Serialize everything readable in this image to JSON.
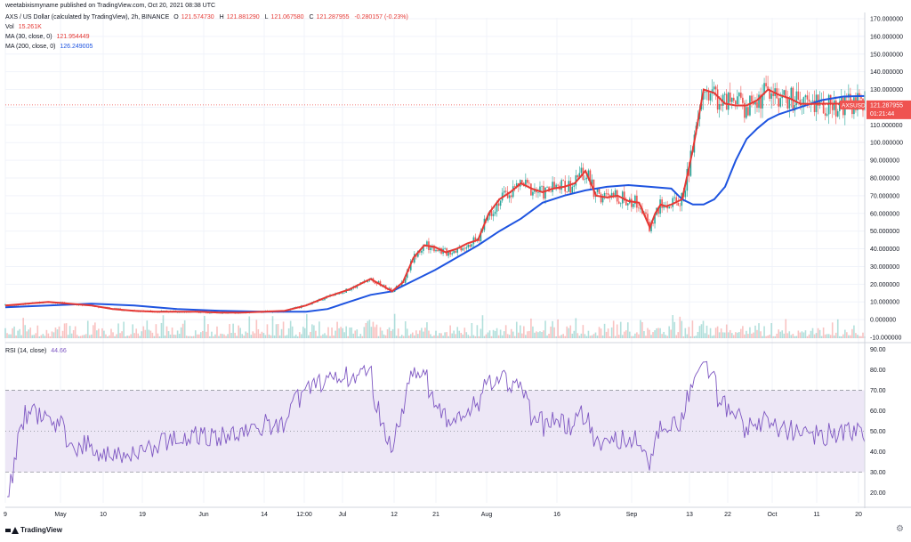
{
  "header": {
    "publisher_line": "weetabixismyname published on TradingView.com, Oct 20, 2021 08:38 UTC",
    "symbol": "AXS / US Dollar (calculated by TradingView), 2h, BINANCE",
    "o_label": "O",
    "o_value": "121.574730",
    "h_label": "H",
    "h_value": "121.881290",
    "l_label": "L",
    "l_value": "121.067580",
    "c_label": "C",
    "c_value": "121.287955",
    "change": "-0.280157 (-0.23%)",
    "vol_label": "Vol",
    "vol_value": "15.261K",
    "ma30_label": "MA (30, close, 0)",
    "ma30_value": "121.954449",
    "ma200_label": "MA (200, close, 0)",
    "ma200_value": "126.249005",
    "rsi_label": "RSI (14, close)",
    "rsi_value": "44.66"
  },
  "price_tag": {
    "symbol": "AXSUSD",
    "price": "121.287955",
    "countdown": "01:21:44"
  },
  "footer": {
    "brand": "TradingView"
  },
  "colors": {
    "up": "#26a69a",
    "down": "#ef5350",
    "ma30": "#e53935",
    "ma200": "#1e54e0",
    "rsi": "#7e57c2",
    "rsi_band": "#ede7f6"
  },
  "chart_data": [
    {
      "type": "line",
      "panel": "price",
      "y_ticks": [
        "170.000000",
        "160.000000",
        "150.000000",
        "140.000000",
        "130.000000",
        "120.000000",
        "110.000000",
        "100.000000",
        "90.000000",
        "80.000000",
        "70.000000",
        "60.000000",
        "50.000000",
        "40.000000",
        "30.000000",
        "20.000000",
        "10.000000",
        "0.000000",
        "-10.000000"
      ],
      "ylim": [
        -10,
        170
      ],
      "x_ticks": [
        "9",
        "May",
        "10",
        "19",
        "Jun",
        "14",
        "12:00",
        "Jul",
        "12",
        "21",
        "Aug",
        "16",
        "Sep",
        "13",
        "22",
        "Oct",
        "11",
        "20"
      ],
      "series": [
        {
          "name": "MA (30, close, 0)",
          "x": [
            0,
            4,
            8,
            12,
            16,
            20,
            24,
            28,
            32,
            36,
            40,
            44,
            48,
            52,
            56,
            60,
            64,
            68,
            72,
            74,
            76,
            78,
            80,
            82,
            84,
            86,
            88,
            90,
            92,
            94,
            96,
            98,
            100,
            102,
            104,
            106,
            108,
            110,
            112,
            114,
            116,
            118,
            120,
            121,
            122,
            123,
            124,
            126,
            128,
            130,
            132,
            134,
            136,
            138,
            140,
            142,
            144,
            146,
            148,
            150,
            152,
            154,
            156,
            158,
            160
          ],
          "values": [
            8,
            9,
            10,
            9,
            8,
            6,
            5,
            4.5,
            4.5,
            4.5,
            4,
            4,
            4.5,
            5,
            8,
            13,
            17,
            23,
            16,
            21,
            35,
            42,
            41,
            38,
            40,
            43,
            45,
            60,
            68,
            72,
            77,
            74,
            72,
            74,
            75,
            77,
            84,
            70,
            69,
            70,
            67,
            66,
            52,
            60,
            65,
            64,
            65,
            68,
            96,
            130,
            128,
            122,
            121,
            121,
            124,
            130,
            127,
            125,
            122,
            121.9,
            122,
            122,
            122,
            122,
            122
          ]
        },
        {
          "name": "MA (200, close, 0)",
          "x": [
            0,
            8,
            16,
            24,
            32,
            40,
            48,
            56,
            60,
            64,
            68,
            72,
            76,
            80,
            84,
            88,
            92,
            96,
            100,
            104,
            108,
            112,
            116,
            120,
            124,
            126,
            128,
            130,
            132,
            134,
            136,
            138,
            140,
            142,
            144,
            146,
            148,
            150,
            152,
            154,
            156,
            158,
            160
          ],
          "values": [
            7,
            8,
            9,
            8,
            6,
            5,
            4.5,
            4.5,
            6,
            10,
            14,
            16,
            22,
            28,
            35,
            42,
            50,
            57,
            66,
            70,
            73,
            75,
            76,
            75,
            74,
            68,
            65,
            65,
            68,
            75,
            90,
            102,
            108,
            113,
            116,
            118,
            120,
            122,
            124,
            125,
            126,
            126.2,
            126.3
          ]
        }
      ]
    },
    {
      "type": "line",
      "panel": "rsi",
      "name": "RSI (14, close)",
      "y_ticks": [
        "90.00",
        "80.00",
        "70.00",
        "60.00",
        "50.00",
        "40.00",
        "30.00",
        "20.00"
      ],
      "ylim": [
        15,
        92
      ],
      "band": [
        30,
        70
      ],
      "midline": 50,
      "last_value": 44.66
    }
  ]
}
